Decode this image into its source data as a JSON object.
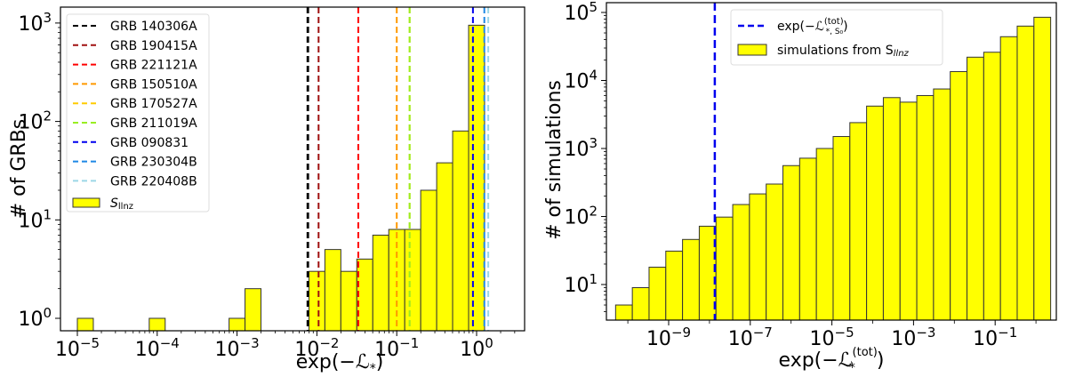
{
  "chart_data": [
    {
      "type": "bar",
      "title": "",
      "xlabel": "exp(-L*)",
      "ylabel": "# of GRBs",
      "xscale": "log",
      "yscale": "log",
      "xlim": [
        5e-06,
        3
      ],
      "ylim": [
        0.8,
        1300
      ],
      "x_ticks": [
        "10^-5",
        "10^-4",
        "10^-3",
        "10^-2",
        "10^-1",
        "10^0"
      ],
      "y_ticks": [
        "10^0",
        "10^1",
        "10^2",
        "10^3"
      ],
      "grid": false,
      "legend_position": "upper left",
      "histogram": {
        "name": "S_llnz",
        "color": "#ffff00",
        "bins": [
          {
            "log10_left": -5.0,
            "log10_right": -4.8,
            "count": 1
          },
          {
            "log10_left": -4.1,
            "log10_right": -3.9,
            "count": 1
          },
          {
            "log10_left": -3.1,
            "log10_right": -2.9,
            "count": 1
          },
          {
            "log10_left": -2.9,
            "log10_right": -2.7,
            "count": 2
          },
          {
            "log10_left": -2.1,
            "log10_right": -1.9,
            "count": 3
          },
          {
            "log10_left": -1.9,
            "log10_right": -1.7,
            "count": 5
          },
          {
            "log10_left": -1.7,
            "log10_right": -1.5,
            "count": 3
          },
          {
            "log10_left": -1.5,
            "log10_right": -1.3,
            "count": 4
          },
          {
            "log10_left": -1.3,
            "log10_right": -1.1,
            "count": 7
          },
          {
            "log10_left": -1.1,
            "log10_right": -0.9,
            "count": 8
          },
          {
            "log10_left": -0.9,
            "log10_right": -0.7,
            "count": 8
          },
          {
            "log10_left": -0.7,
            "log10_right": -0.5,
            "count": 20
          },
          {
            "log10_left": -0.5,
            "log10_right": -0.3,
            "count": 38
          },
          {
            "log10_left": -0.3,
            "log10_right": -0.1,
            "count": 80
          },
          {
            "log10_left": -0.1,
            "log10_right": 0.1,
            "count": 950
          }
        ]
      },
      "vlines": [
        {
          "name": "GRB 140306A",
          "color": "#000000",
          "x": 0.0077
        },
        {
          "name": "GRB 190415A",
          "color": "#a01010",
          "x": 0.0105
        },
        {
          "name": "GRB 221121A",
          "color": "#ff0000",
          "x": 0.033
        },
        {
          "name": "GRB 150510A",
          "color": "#ff9900",
          "x": 0.1
        },
        {
          "name": "GRB 170527A",
          "color": "#ffcc00",
          "x": 0.145
        },
        {
          "name": "GRB 211019A",
          "color": "#99ee22",
          "x": 0.145
        },
        {
          "name": "GRB 090831",
          "color": "#0000ee",
          "x": 0.9
        },
        {
          "name": "GRB 230304B",
          "color": "#1e88e5",
          "x": 1.25
        },
        {
          "name": "GRB 220408B",
          "color": "#9cd6e6",
          "x": 1.4
        }
      ]
    },
    {
      "type": "bar",
      "title": "",
      "xlabel": "exp(-L*^(tot))",
      "ylabel": "# of simulations",
      "xscale": "log",
      "yscale": "log",
      "xlim": [
        2e-11,
        30
      ],
      "ylim": [
        3,
        130000
      ],
      "x_ticks": [
        "10^-9",
        "10^-7",
        "10^-5",
        "10^-3",
        "10^-1"
      ],
      "y_ticks": [
        "10^1",
        "10^2",
        "10^3",
        "10^4",
        "10^5"
      ],
      "grid": false,
      "legend_position": "upper center",
      "histogram": {
        "name": "simulations from S_llnz",
        "color": "#ffff00",
        "log10_left_edge": -10.3,
        "bin_width_log10": 0.41,
        "counts": [
          5,
          9,
          18,
          31,
          46,
          72,
          98,
          150,
          215,
          300,
          560,
          720,
          1000,
          1500,
          2400,
          4200,
          5600,
          4800,
          6000,
          7500,
          13500,
          22000,
          26000,
          44000,
          63000,
          85000
        ]
      },
      "vlines": [
        {
          "name": "exp(-L*,S0^(tot))",
          "color": "#0000ee",
          "x": 1e-08
        }
      ]
    }
  ],
  "left": {
    "ylabel": "# of GRBs",
    "xlabel": "exp(−ℒ",
    "xlabel_sub": "*",
    "xlabel_close": ")",
    "legend": [
      "GRB 140306A",
      "GRB 190415A",
      "GRB 221121A",
      "GRB 150510A",
      "GRB 170527A",
      "GRB 211019A",
      "GRB 090831",
      "GRB 230304B",
      "GRB 220408B"
    ],
    "legend_hist_main": "S",
    "legend_hist_sub": "llnz"
  },
  "right": {
    "ylabel": "# of simulations",
    "xlabel": "exp(−ℒ",
    "xlabel_sup": "(tot)",
    "xlabel_sub": "*",
    "xlabel_close": ")",
    "legend_line": "exp(−ℒ",
    "legend_line_sup": "(tot)",
    "legend_line_sub": "*, S₀",
    "legend_line_close": ")",
    "legend_hist": "simulations from S",
    "legend_hist_sub": "llnz"
  },
  "colors": {
    "bar_fill": "#ffff00",
    "bar_edge": "#333333",
    "axis": "#000000"
  }
}
